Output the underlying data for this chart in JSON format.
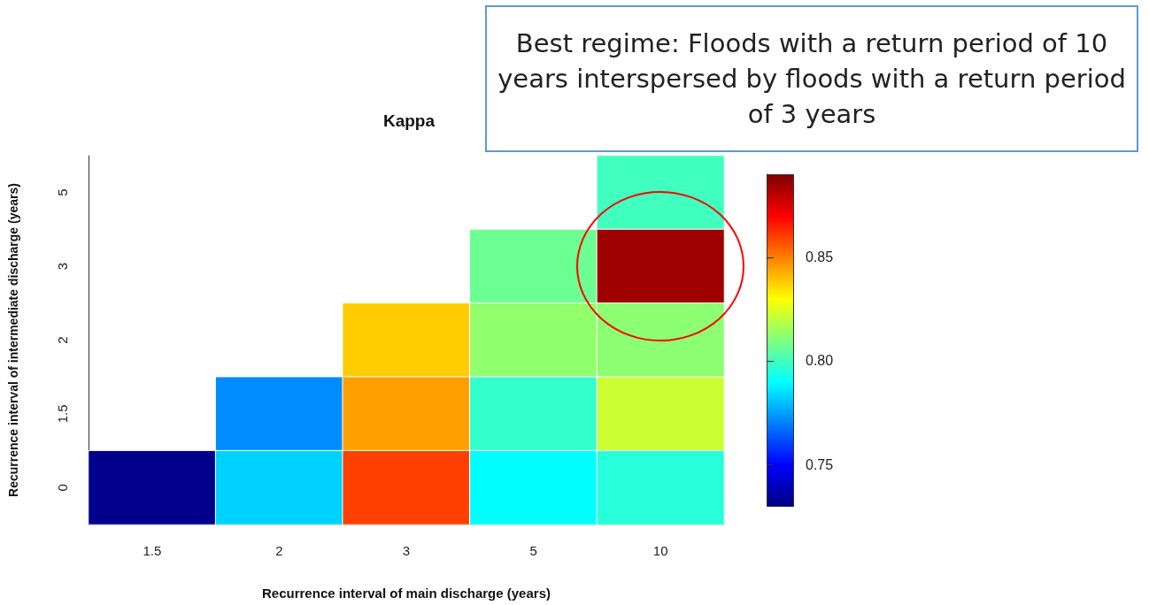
{
  "chart_data": {
    "type": "heatmap",
    "title": "Kappa",
    "xlabel": "Recurrence interval of main discharge (years)",
    "ylabel": "Recurrence interval of intermediate discharge (years)",
    "categories": [
      "1.5",
      "2",
      "3",
      "5",
      "10"
    ],
    "y_categories": [
      "5",
      "3",
      "2",
      "1.5",
      "0"
    ],
    "cells": [
      [
        null,
        null,
        null,
        null,
        0.8
      ],
      [
        null,
        null,
        null,
        0.807,
        0.885
      ],
      [
        null,
        null,
        0.838,
        0.813,
        0.812
      ],
      [
        null,
        0.772,
        0.845,
        0.798,
        0.822
      ],
      [
        0.732,
        0.783,
        0.86,
        0.79,
        0.796
      ]
    ],
    "clim": [
      0.73,
      0.89
    ],
    "cticks": [
      {
        "value": 0.75,
        "label": "0.75"
      },
      {
        "value": 0.8,
        "label": "0.80"
      },
      {
        "value": 0.85,
        "label": "0.85"
      }
    ],
    "annotations": [
      "Best regime: Floods with a return period of 10 years interspersed by floods with a return period of 3 years"
    ]
  }
}
